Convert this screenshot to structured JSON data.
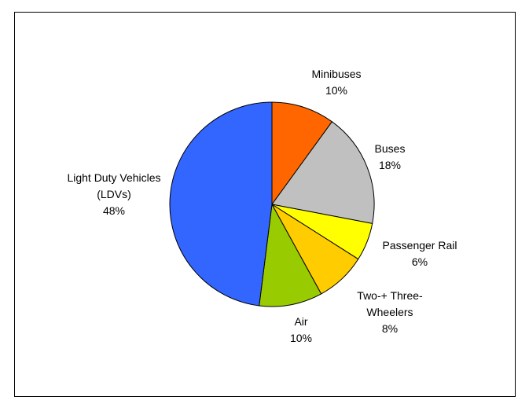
{
  "chart_data": {
    "type": "pie",
    "categories": [
      "Minibuses",
      "Buses",
      "Passenger Rail",
      "Two-+ Three-Wheelers",
      "Air",
      "Light Duty Vehicles (LDVs)"
    ],
    "values": [
      10,
      18,
      6,
      8,
      10,
      48
    ],
    "value_labels": [
      "10%",
      "18%",
      "6%",
      "8%",
      "10%",
      "48%"
    ],
    "colors": [
      "#ff6600",
      "#c0c0c0",
      "#ffff00",
      "#ffcc00",
      "#99cc00",
      "#3366ff"
    ]
  }
}
